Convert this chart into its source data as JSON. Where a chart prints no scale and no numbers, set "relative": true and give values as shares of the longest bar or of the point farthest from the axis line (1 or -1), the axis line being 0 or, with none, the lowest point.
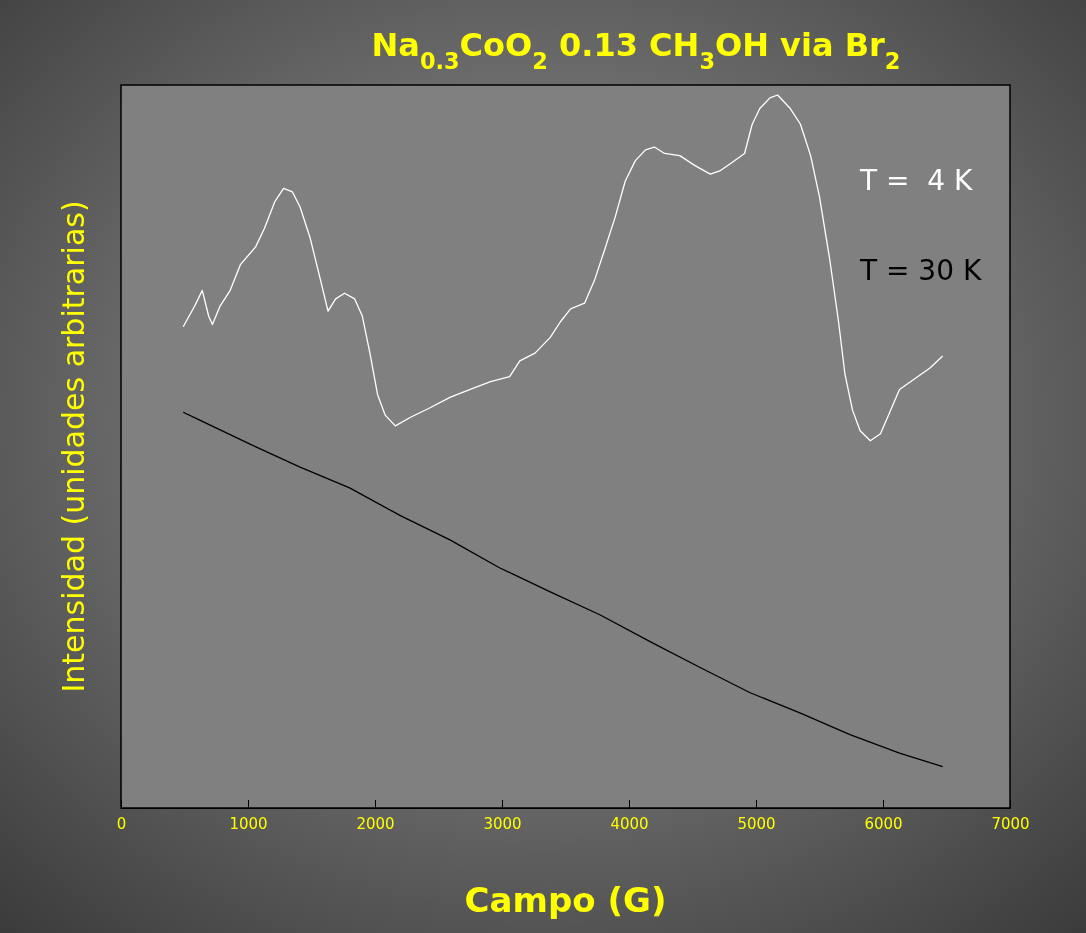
{
  "chart_data": {
    "type": "line",
    "title": "Na$_{0.3}$CoO$_{2}$ 0.13 CH$_{3}$OH via Br$_{2}$",
    "xlabel": "Campo (G)",
    "ylabel": "Intensidad (unidades arbitrarias)",
    "relative": true,
    "xlim": [
      0,
      7000
    ],
    "xticks": [
      0,
      1000,
      2000,
      3000,
      4000,
      5000,
      6000,
      7000
    ],
    "legend": "top right",
    "grid": false,
    "marker": "none",
    "line_style": "solid",
    "series": [
      {
        "name": "T =  4 K",
        "color": "#ffffff",
        "x": [
          490,
          580,
          640,
          690,
          720,
          780,
          860,
          940,
          1060,
          1130,
          1210,
          1280,
          1350,
          1410,
          1490,
          1570,
          1630,
          1690,
          1760,
          1840,
          1900,
          1960,
          2020,
          2080,
          2160,
          2280,
          2430,
          2590,
          2750,
          2910,
          3060,
          3140,
          3260,
          3380,
          3460,
          3540,
          3650,
          3730,
          3810,
          3890,
          3970,
          4050,
          4130,
          4200,
          4280,
          4400,
          4520,
          4640,
          4720,
          4800,
          4910,
          4970,
          5030,
          5110,
          5170,
          5270,
          5350,
          5430,
          5500,
          5580,
          5650,
          5700,
          5760,
          5820,
          5900,
          5980,
          6060,
          6130,
          6250,
          6370,
          6470
        ],
        "values": [
          0.675,
          0.704,
          0.726,
          0.69,
          0.678,
          0.704,
          0.726,
          0.762,
          0.787,
          0.813,
          0.85,
          0.869,
          0.864,
          0.843,
          0.799,
          0.741,
          0.697,
          0.714,
          0.722,
          0.714,
          0.69,
          0.638,
          0.58,
          0.551,
          0.536,
          0.548,
          0.561,
          0.576,
          0.587,
          0.598,
          0.605,
          0.627,
          0.638,
          0.66,
          0.682,
          0.7,
          0.708,
          0.741,
          0.784,
          0.828,
          0.879,
          0.908,
          0.923,
          0.927,
          0.918,
          0.915,
          0.901,
          0.889,
          0.894,
          0.904,
          0.918,
          0.959,
          0.981,
          0.996,
          1,
          0.981,
          0.959,
          0.915,
          0.857,
          0.77,
          0.682,
          0.609,
          0.558,
          0.529,
          0.515,
          0.525,
          0.558,
          0.587,
          0.602,
          0.617,
          0.634
        ]
      },
      {
        "name": "T = 30 K",
        "color": "#000000",
        "x": [
          490,
          620,
          1020,
          1410,
          1800,
          2200,
          2590,
          2980,
          3380,
          3770,
          4170,
          4560,
          4950,
          5350,
          5740,
          6130,
          6470
        ],
        "values": [
          0.555,
          0.544,
          0.51,
          0.478,
          0.449,
          0.41,
          0.376,
          0.337,
          0.303,
          0.271,
          0.233,
          0.197,
          0.162,
          0.133,
          0.103,
          0.077,
          0.058
        ]
      }
    ]
  }
}
